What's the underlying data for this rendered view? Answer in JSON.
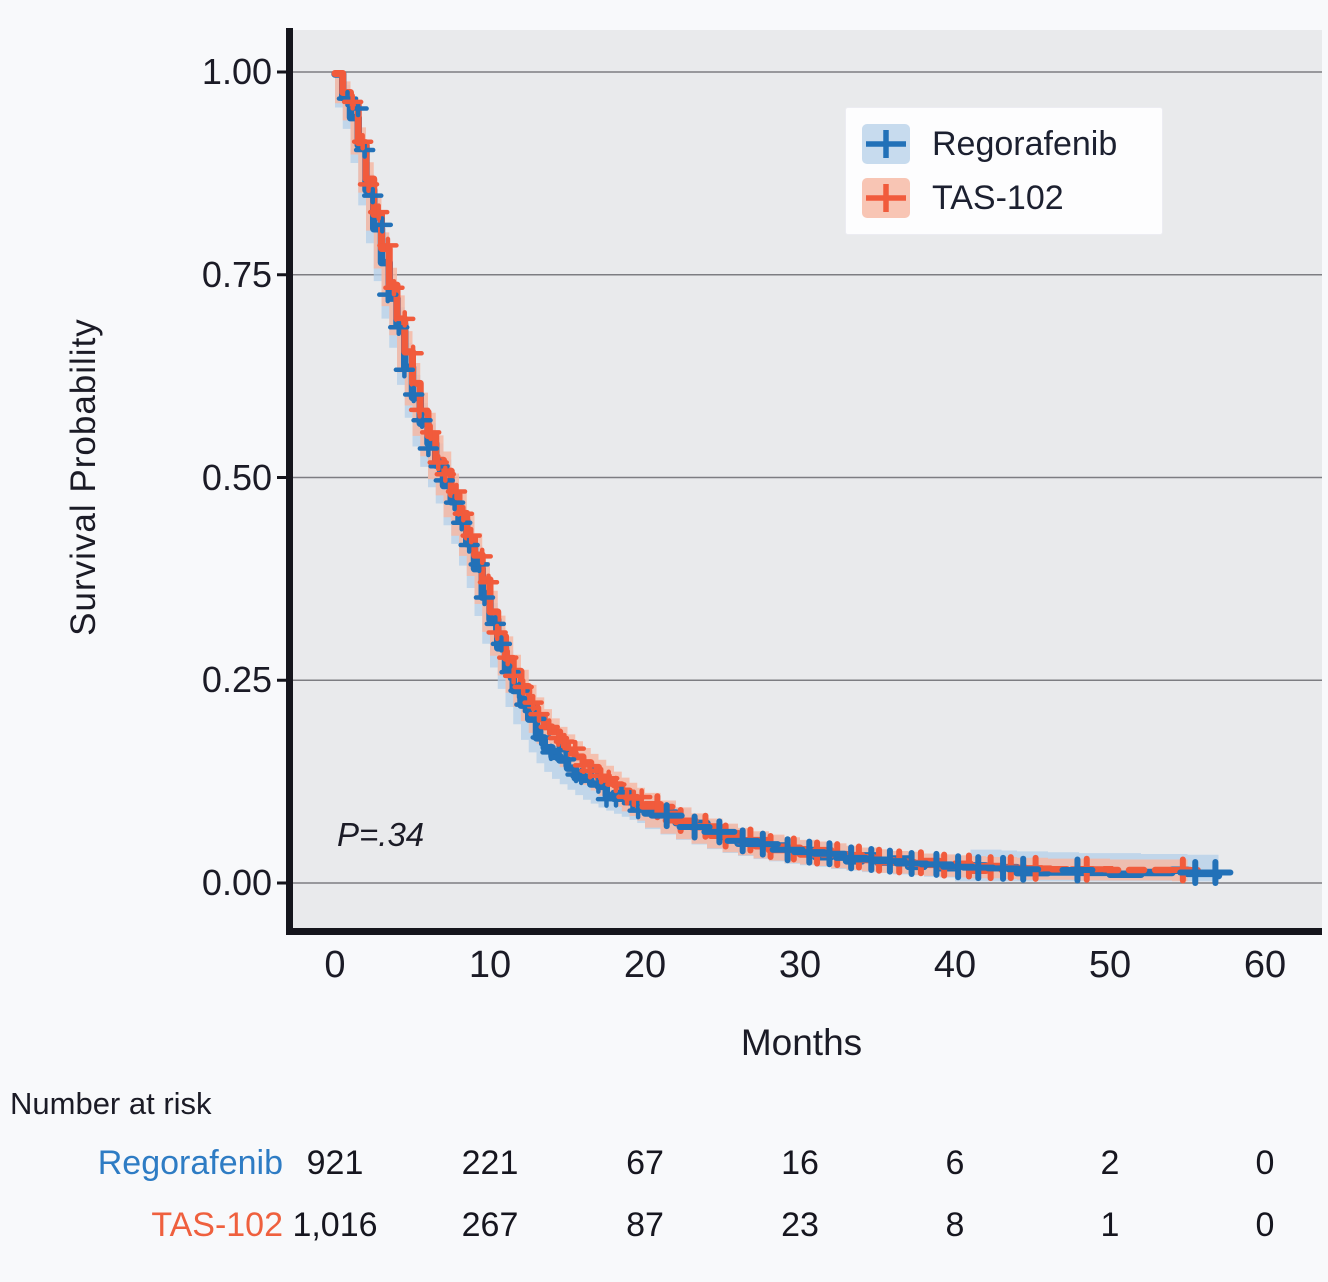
{
  "figure": {
    "p_value": "P=.34",
    "y_axis": {
      "label": "Survival Probability",
      "ticks": [
        "1.00",
        "0.75",
        "0.50",
        "0.25",
        "0.00"
      ],
      "tick_values": [
        1.0,
        0.75,
        0.5,
        0.25,
        0.0
      ]
    },
    "x_axis": {
      "label": "Months",
      "ticks": [
        "0",
        "10",
        "20",
        "30",
        "40",
        "50",
        "60"
      ],
      "tick_values": [
        0,
        10,
        20,
        30,
        40,
        50,
        60
      ]
    }
  },
  "legend": {
    "items": [
      {
        "label": "Regorafenib",
        "line_color": "#2271b8",
        "fill_color": "#c7dbee"
      },
      {
        "label": "TAS-102",
        "line_color": "#f15b3c",
        "fill_color": "#f8c5b4"
      }
    ]
  },
  "chart_data": {
    "type": "line",
    "subtype": "kaplan-meier-step",
    "title": "",
    "xlabel": "Months",
    "ylabel": "Survival Probability",
    "xlim": [
      0,
      60
    ],
    "ylim": [
      0,
      1
    ],
    "grid": "horizontal",
    "legend_position": "upper-right-inside",
    "annotation": "P=.34",
    "series": [
      {
        "name": "Regorafenib",
        "color": "#2271b8",
        "ci_color": "#b3cfe9",
        "line_style": "solid",
        "end_month": 57,
        "points": [
          [
            0,
            1
          ],
          [
            0.5,
            0.97
          ],
          [
            1,
            0.945
          ],
          [
            1.5,
            0.905
          ],
          [
            2,
            0.855
          ],
          [
            2.5,
            0.81
          ],
          [
            3,
            0.765
          ],
          [
            3.5,
            0.72
          ],
          [
            4,
            0.685
          ],
          [
            4.5,
            0.64
          ],
          [
            5,
            0.6
          ],
          [
            5.5,
            0.565
          ],
          [
            6,
            0.54
          ],
          [
            6.5,
            0.515
          ],
          [
            7,
            0.495
          ],
          [
            7.5,
            0.468
          ],
          [
            8,
            0.445
          ],
          [
            8.5,
            0.418
          ],
          [
            9,
            0.39
          ],
          [
            9.5,
            0.355
          ],
          [
            10,
            0.32
          ],
          [
            10.5,
            0.29
          ],
          [
            11,
            0.263
          ],
          [
            11.5,
            0.24
          ],
          [
            12,
            0.218
          ],
          [
            12.5,
            0.198
          ],
          [
            13,
            0.182
          ],
          [
            13.5,
            0.168
          ],
          [
            14,
            0.157
          ],
          [
            14.5,
            0.148
          ],
          [
            15,
            0.141
          ],
          [
            15.5,
            0.134
          ],
          [
            16,
            0.127
          ],
          [
            16.5,
            0.121
          ],
          [
            17,
            0.116
          ],
          [
            17.5,
            0.111
          ],
          [
            18,
            0.107
          ],
          [
            18.5,
            0.103
          ],
          [
            19,
            0.099
          ],
          [
            19.5,
            0.095
          ],
          [
            20,
            0.091
          ],
          [
            21,
            0.083
          ],
          [
            22,
            0.076
          ],
          [
            23,
            0.069
          ],
          [
            24,
            0.063
          ],
          [
            25,
            0.057
          ],
          [
            26,
            0.052
          ],
          [
            27,
            0.048
          ],
          [
            28,
            0.044
          ],
          [
            29,
            0.041
          ],
          [
            30,
            0.038
          ],
          [
            31,
            0.036
          ],
          [
            32,
            0.034
          ],
          [
            33,
            0.031
          ],
          [
            34,
            0.029
          ],
          [
            35,
            0.027
          ],
          [
            36,
            0.026
          ],
          [
            37,
            0.024
          ],
          [
            38,
            0.023
          ],
          [
            39,
            0.021
          ],
          [
            40,
            0.02
          ],
          [
            41,
            0.019
          ],
          [
            42,
            0.019
          ],
          [
            43,
            0.018
          ],
          [
            44,
            0.017
          ],
          [
            46,
            0.016
          ],
          [
            48,
            0.015
          ],
          [
            50,
            0.015
          ],
          [
            52,
            0.014
          ],
          [
            54,
            0.014
          ],
          [
            55,
            0.013
          ],
          [
            57,
            0.013
          ]
        ],
        "censor_months": [
          21.4,
          23.2,
          24.8,
          26.3,
          27.6,
          29.2,
          30.6,
          31.9,
          33.3,
          34.6,
          35.8,
          37.2,
          38.8,
          40.2,
          41.5,
          43.1,
          44.4,
          47.9,
          55.5,
          56.8
        ]
      },
      {
        "name": "TAS-102",
        "color": "#f15b3c",
        "ci_color": "#f6b9a5",
        "line_style": "solid-then-dashed",
        "dashed_from": 43,
        "end_month": 55,
        "points": [
          [
            0,
            1
          ],
          [
            0.5,
            0.975
          ],
          [
            1,
            0.955
          ],
          [
            1.5,
            0.915
          ],
          [
            2,
            0.87
          ],
          [
            2.5,
            0.825
          ],
          [
            3,
            0.78
          ],
          [
            3.5,
            0.735
          ],
          [
            4,
            0.7
          ],
          [
            4.5,
            0.655
          ],
          [
            5,
            0.615
          ],
          [
            5.5,
            0.578
          ],
          [
            6,
            0.553
          ],
          [
            6.5,
            0.525
          ],
          [
            7,
            0.505
          ],
          [
            7.5,
            0.478
          ],
          [
            8,
            0.455
          ],
          [
            8.5,
            0.43
          ],
          [
            9,
            0.405
          ],
          [
            9.5,
            0.37
          ],
          [
            10,
            0.335
          ],
          [
            10.5,
            0.305
          ],
          [
            11,
            0.28
          ],
          [
            11.5,
            0.258
          ],
          [
            12,
            0.24
          ],
          [
            12.5,
            0.222
          ],
          [
            13,
            0.207
          ],
          [
            13.5,
            0.193
          ],
          [
            14,
            0.182
          ],
          [
            14.5,
            0.172
          ],
          [
            15,
            0.163
          ],
          [
            15.5,
            0.155
          ],
          [
            16,
            0.147
          ],
          [
            16.5,
            0.14
          ],
          [
            17,
            0.133
          ],
          [
            17.5,
            0.126
          ],
          [
            18,
            0.119
          ],
          [
            18.5,
            0.112
          ],
          [
            19,
            0.106
          ],
          [
            19.5,
            0.1
          ],
          [
            20,
            0.094
          ],
          [
            21,
            0.085
          ],
          [
            22,
            0.077
          ],
          [
            23,
            0.07
          ],
          [
            24,
            0.064
          ],
          [
            25,
            0.058
          ],
          [
            26,
            0.053
          ],
          [
            27,
            0.049
          ],
          [
            28,
            0.045
          ],
          [
            29,
            0.042
          ],
          [
            30,
            0.039
          ],
          [
            31,
            0.037
          ],
          [
            32,
            0.035
          ],
          [
            33,
            0.032
          ],
          [
            34,
            0.03
          ],
          [
            35,
            0.028
          ],
          [
            36,
            0.026
          ],
          [
            37,
            0.025
          ],
          [
            38,
            0.023
          ],
          [
            39,
            0.022
          ],
          [
            40,
            0.021
          ],
          [
            41,
            0.02
          ],
          [
            42,
            0.019
          ],
          [
            43,
            0.019
          ],
          [
            44,
            0.018
          ],
          [
            46,
            0.017
          ],
          [
            48,
            0.017
          ],
          [
            50,
            0.016
          ],
          [
            52,
            0.016
          ],
          [
            54,
            0.016
          ],
          [
            55,
            0.015
          ]
        ],
        "censor_months": [
          20.8,
          22.3,
          23.9,
          25.2,
          26.8,
          28.1,
          29.6,
          31.1,
          32.4,
          33.8,
          35.1,
          36.4,
          37.8,
          39.3,
          40.9,
          42.3,
          43.6,
          45.2,
          48.5,
          54.7
        ]
      }
    ]
  },
  "risk_table": {
    "title": "Number at risk",
    "time_points": [
      0,
      10,
      20,
      30,
      40,
      50,
      60
    ],
    "rows": [
      {
        "label": "Regorafenib",
        "label_color": "#2e7cc4",
        "counts": [
          "921",
          "221",
          "67",
          "16",
          "6",
          "2",
          "0"
        ]
      },
      {
        "label": "TAS-102",
        "label_color": "#ef603e",
        "counts": [
          "1,016",
          "267",
          "87",
          "23",
          "8",
          "1",
          "0"
        ]
      }
    ]
  },
  "style_colors": {
    "plot_background": "#e9eaec",
    "page_background": "#f8f9fb",
    "gridline": "#7d7d82",
    "axis": "#15151c",
    "text": "#1b1b26"
  }
}
